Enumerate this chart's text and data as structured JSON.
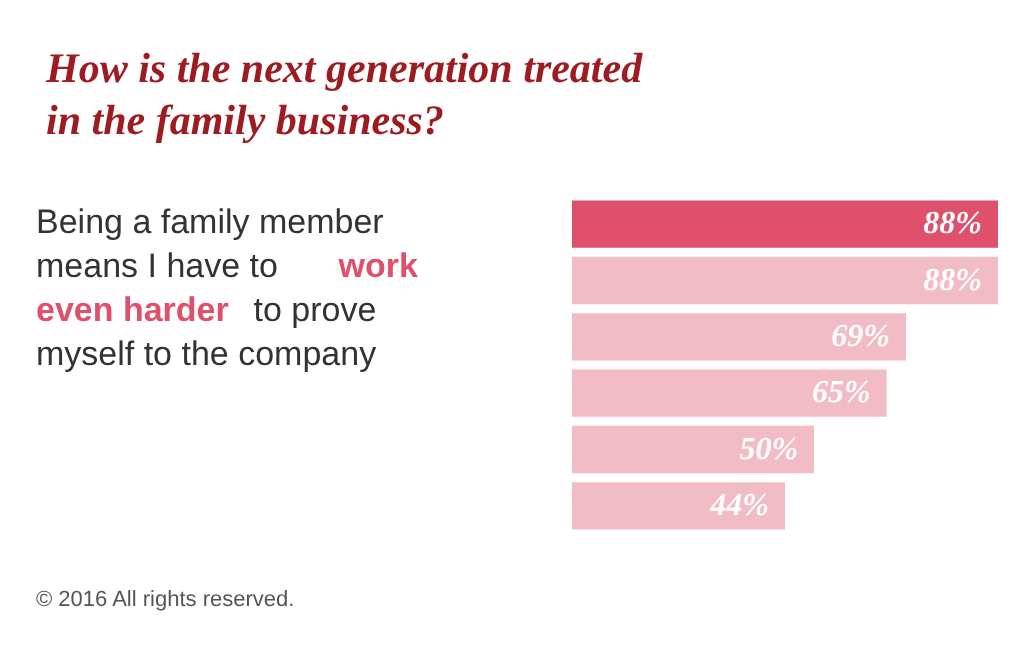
{
  "chart_data": {
    "type": "bar",
    "orientation": "horizontal",
    "title": "How is the next generation treated\nin the family business?",
    "annotations": [
      "Being a family member means I have to ",
      "work even harder",
      " to prove myself to the company",
      "© 2016 All rights reserved."
    ],
    "categories": [
      null,
      null,
      null,
      null,
      null,
      null
    ],
    "values": [
      88,
      88,
      69,
      65,
      50,
      44
    ],
    "colors": [
      "#de506b",
      "#f2bcc7",
      "#f2bcc7",
      "#f2bcc7",
      "#f2bcc7",
      "#f2bcc7"
    ],
    "value_labels": [
      "88%",
      "88%",
      "69%",
      "65%",
      "50%",
      "44%"
    ]
  }
}
